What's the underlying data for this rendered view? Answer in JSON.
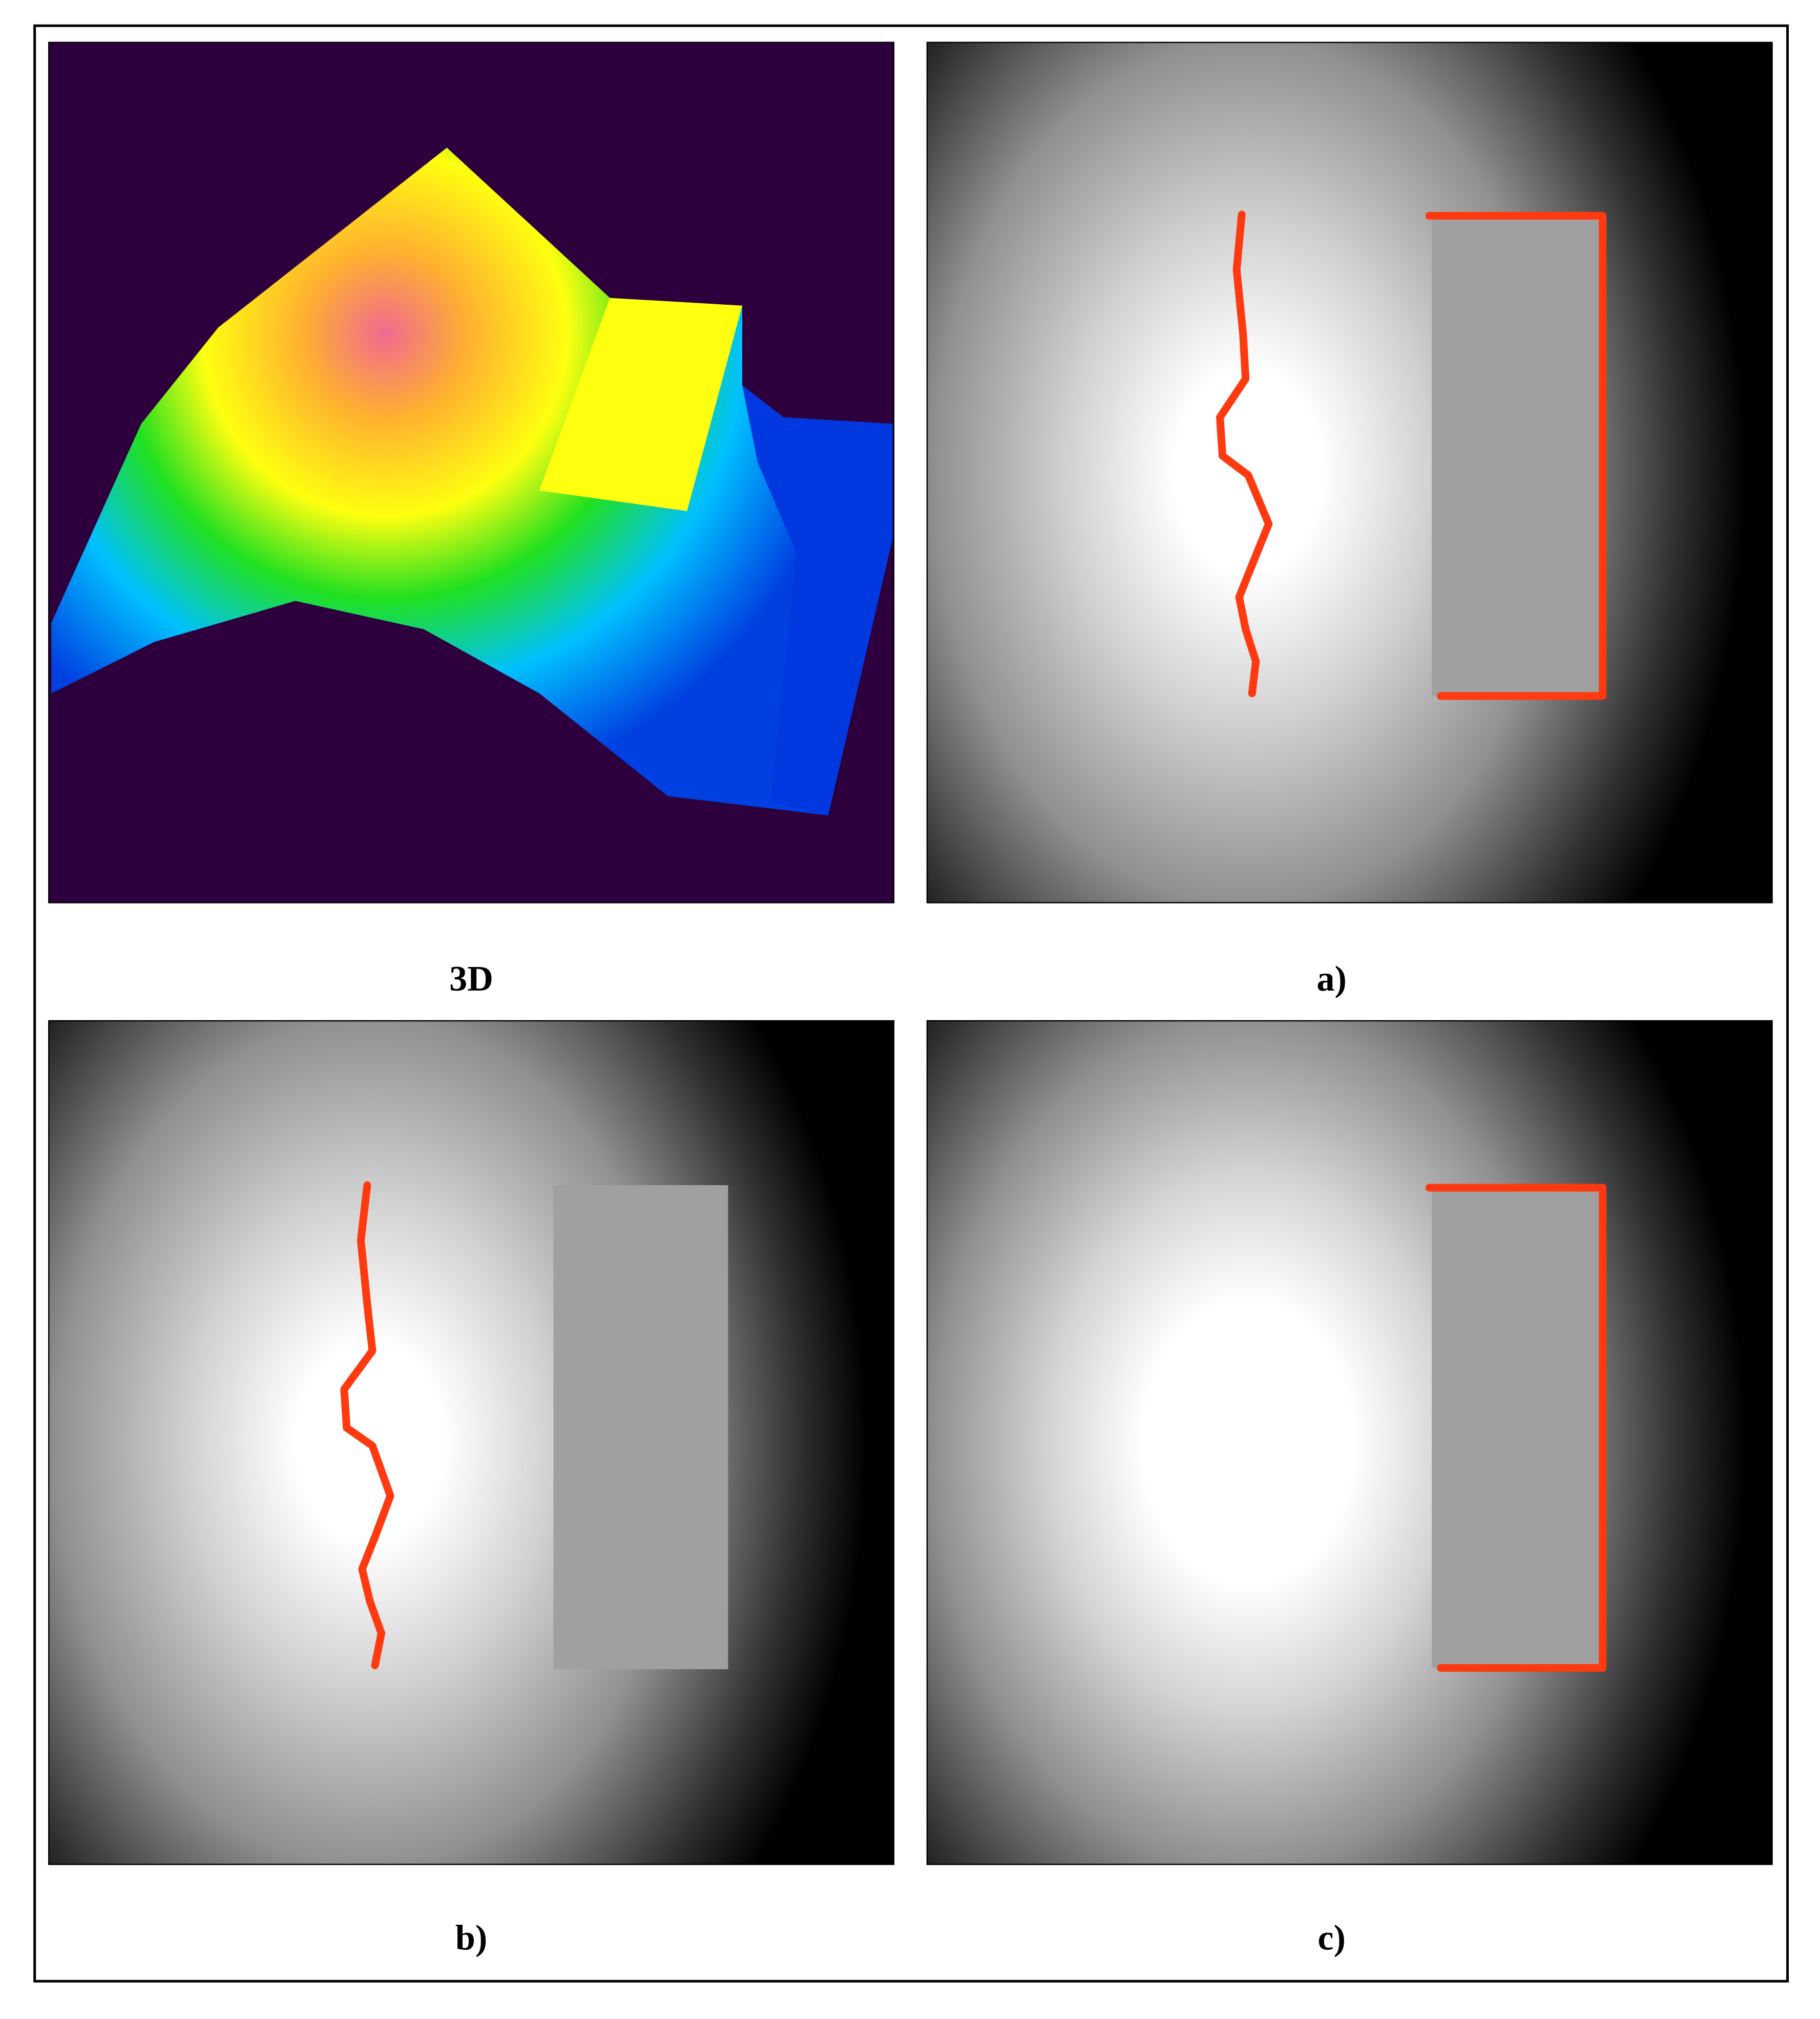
{
  "panels": [
    {
      "label": "3D"
    },
    {
      "label": "a)"
    },
    {
      "label": "b)"
    },
    {
      "label": "c)"
    }
  ]
}
